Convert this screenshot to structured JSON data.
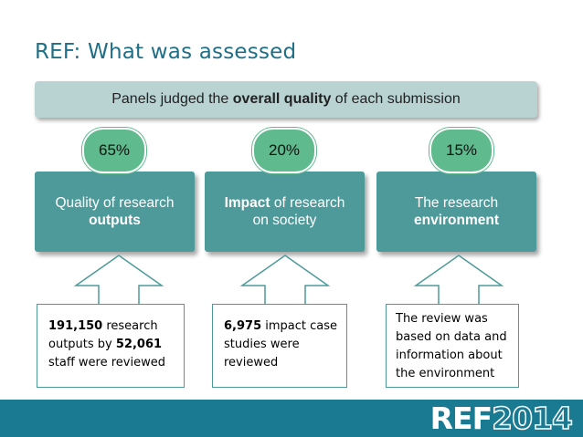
{
  "slide": {
    "title": "REF: What was assessed",
    "banner": {
      "prefix": "Panels judged the ",
      "emphasis": "overall quality",
      "suffix": " of each submission"
    },
    "columns": [
      {
        "percent": "65%",
        "box_line1": "Quality of research",
        "box_line2": "outputs",
        "note": {
          "n1": "191,150",
          "t1": " research outputs by ",
          "n2": "52,061",
          "t2": " staff were reviewed"
        }
      },
      {
        "percent": "20%",
        "box_bold": "Impact",
        "box_line1_rest": " of research",
        "box_line2": "on society",
        "note": {
          "n1": "6,975",
          "t1": " impact case studies were reviewed"
        }
      },
      {
        "percent": "15%",
        "box_line1": "The research",
        "box_line2": "environment",
        "note": {
          "t1": "The review was based on data and information about the environment"
        }
      }
    ],
    "footer": {
      "logo_ref": "REF",
      "logo_year": "2014"
    },
    "colors": {
      "title": "#1f6f86",
      "banner": "#b9d3d3",
      "box": "#4e9a9a",
      "percent": "#5fba8d",
      "footer": "#1a7a91"
    }
  }
}
